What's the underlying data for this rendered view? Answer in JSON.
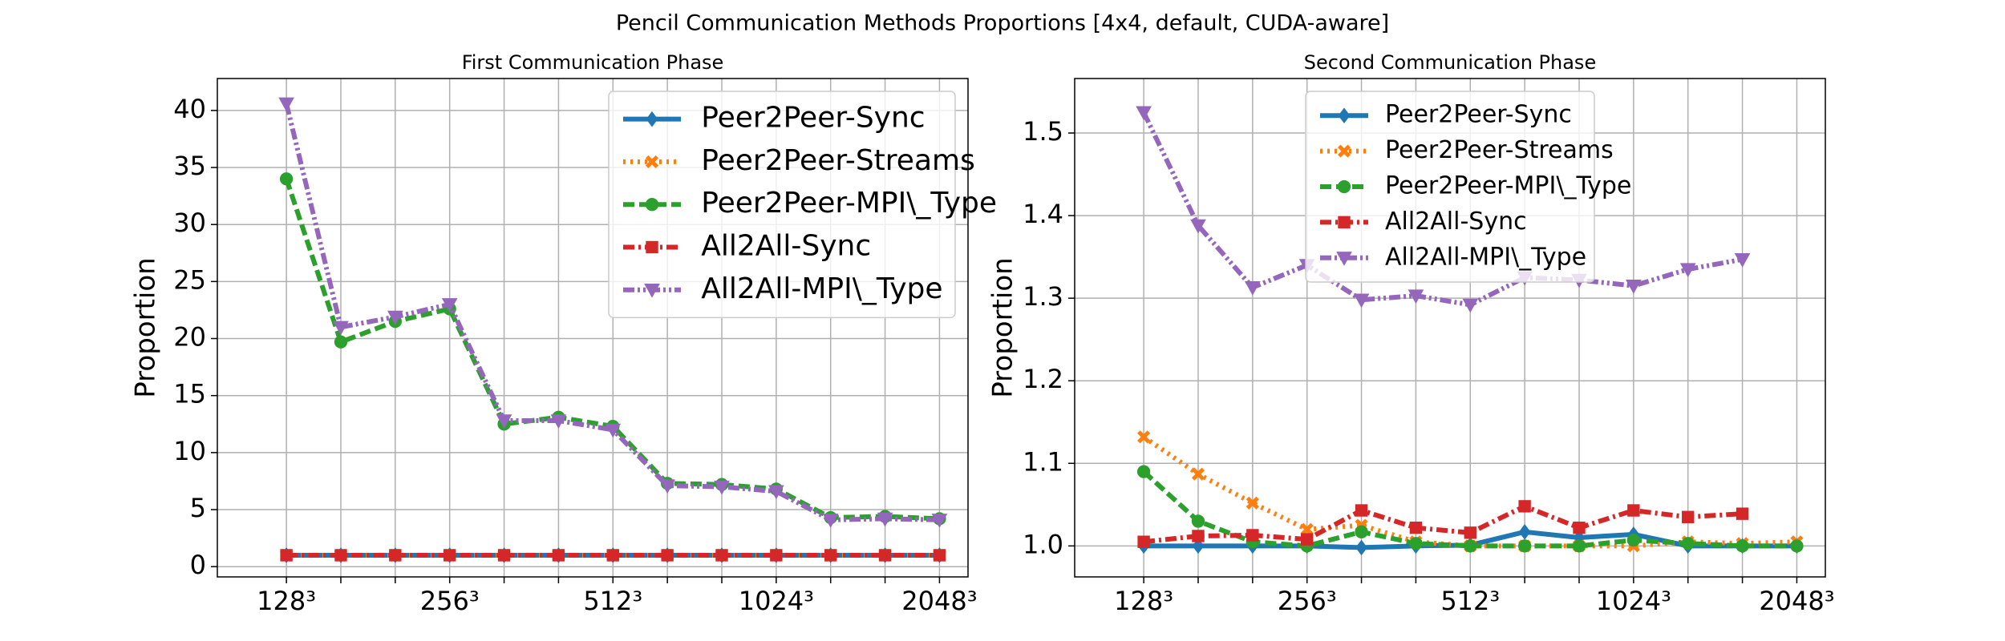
{
  "title": "Pencil Communication Methods Proportions [4x4, default, CUDA-aware]",
  "chart_data": [
    {
      "type": "line",
      "title": "First Communication Phase",
      "ylabel": "Proportion",
      "legend": "upper right",
      "grid": true,
      "categories": [
        "128³",
        null,
        null,
        "256³",
        null,
        null,
        "512³",
        null,
        null,
        "1024³",
        null,
        null,
        "2048³"
      ],
      "ylim": [
        -0.9,
        42.8
      ],
      "yticks": [
        0,
        5,
        10,
        15,
        20,
        25,
        30,
        35,
        40
      ],
      "series": [
        {
          "name": "Peer2Peer-Sync",
          "color": "#1f77b4",
          "linestyle": "solid",
          "marker": "diamond",
          "values": [
            1,
            1,
            1,
            1,
            1,
            1,
            1,
            1,
            1,
            1,
            1,
            1,
            1
          ]
        },
        {
          "name": "Peer2Peer-Streams",
          "color": "#ff7f0e",
          "linestyle": "dotted",
          "marker": "x",
          "values": [
            1,
            1,
            1,
            1,
            1,
            1,
            1,
            1,
            1,
            1,
            1,
            1,
            1
          ]
        },
        {
          "name": "Peer2Peer-MPI\\_Type",
          "color": "#2ca02c",
          "linestyle": "dashed",
          "marker": "circle",
          "values": [
            34,
            19.7,
            21.5,
            22.6,
            12.5,
            13.1,
            12.3,
            7.3,
            7.2,
            6.8,
            4.3,
            4.4,
            4.2
          ]
        },
        {
          "name": "All2All-Sync",
          "color": "#d62728",
          "linestyle": "dashdot",
          "marker": "square",
          "values": [
            1,
            1,
            1,
            1,
            1,
            1,
            1,
            1,
            1,
            1,
            1,
            1,
            1
          ]
        },
        {
          "name": "All2All-MPI\\_Type",
          "color": "#9467bd",
          "linestyle": "dashdotdot",
          "marker": "triangle-down",
          "values": [
            40.6,
            21,
            21.9,
            23,
            12.8,
            12.8,
            12,
            7.1,
            7,
            6.6,
            4.1,
            4.2,
            4.1
          ]
        }
      ]
    },
    {
      "type": "line",
      "title": "Second Communication Phase",
      "ylabel": "Proportion",
      "legend": "upper center",
      "grid": true,
      "categories": [
        "128³",
        null,
        null,
        "256³",
        null,
        null,
        "512³",
        null,
        null,
        "1024³",
        null,
        null,
        "2048³"
      ],
      "ylim": [
        0.9625,
        1.566
      ],
      "yticks": [
        {
          "value": 1,
          "label": "1.0"
        },
        1.1,
        1.2,
        1.3,
        1.4,
        1.5
      ],
      "series": [
        {
          "name": "Peer2Peer-Sync",
          "color": "#1f77b4",
          "linestyle": "solid",
          "marker": "diamond",
          "values": [
            1,
            1,
            1,
            1,
            0.998,
            1,
            1.001,
            1.017,
            1.01,
            1.014,
            1,
            1,
            1
          ]
        },
        {
          "name": "Peer2Peer-Streams",
          "color": "#ff7f0e",
          "linestyle": "dotted",
          "marker": "x",
          "values": [
            1.132,
            1.087,
            1.052,
            1.02,
            1.025,
            1.005,
            1,
            1,
            1,
            1,
            1.005,
            1.003,
            1.005
          ]
        },
        {
          "name": "Peer2Peer-MPI\\_Type",
          "color": "#2ca02c",
          "linestyle": "dashed",
          "marker": "circle",
          "values": [
            1.09,
            1.03,
            1.005,
            1,
            1.017,
            1.003,
            1,
            1,
            1,
            1.007,
            1.003,
            1,
            1
          ]
        },
        {
          "name": "All2All-Sync",
          "color": "#d62728",
          "linestyle": "dashdot",
          "marker": "square",
          "values": [
            1.005,
            1.012,
            1.013,
            1.008,
            1.043,
            1.022,
            1.016,
            1.048,
            1.022,
            1.043,
            1.035,
            1.039,
            null
          ]
        },
        {
          "name": "All2All-MPI\\_Type",
          "color": "#9467bd",
          "linestyle": "dashdotdot",
          "marker": "triangle-down",
          "values": [
            1.525,
            1.388,
            1.313,
            1.34,
            1.298,
            1.303,
            1.292,
            1.325,
            1.322,
            1.315,
            1.335,
            1.347,
            null
          ]
        }
      ]
    }
  ]
}
